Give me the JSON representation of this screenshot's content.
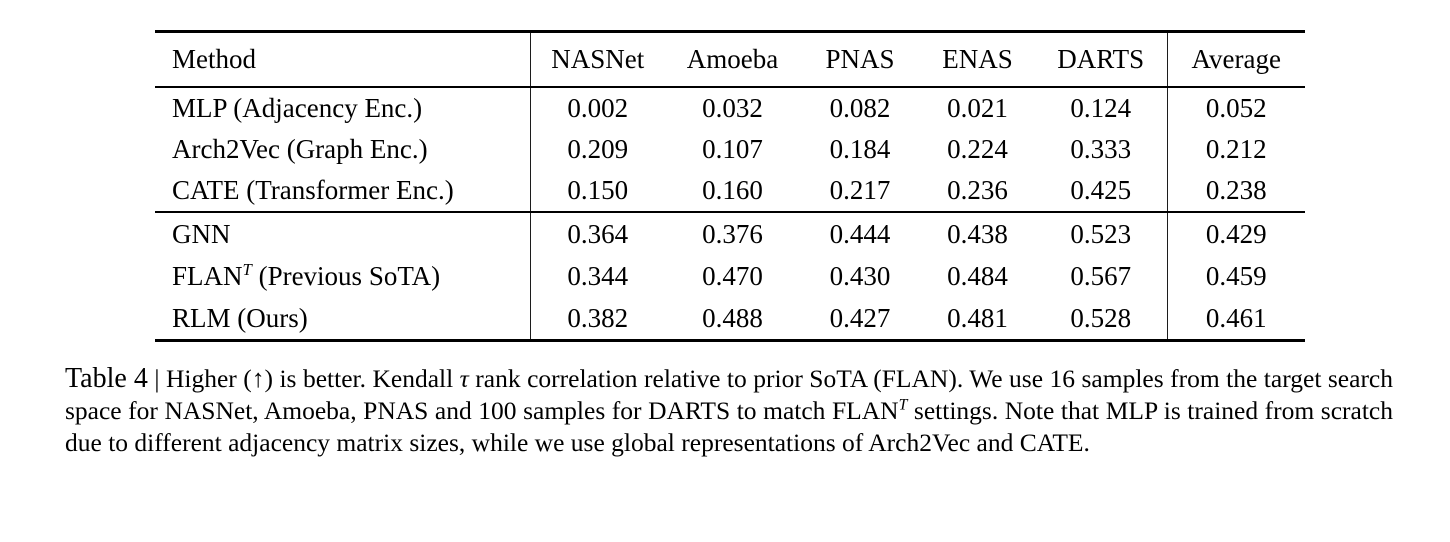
{
  "table": {
    "columns": [
      "Method",
      "NASNet",
      "Amoeba",
      "PNAS",
      "ENAS",
      "DARTS",
      "Average"
    ],
    "groups": [
      {
        "rows": [
          {
            "method": "MLP (Adjacency Enc.)",
            "values": [
              "0.002",
              "0.032",
              "0.082",
              "0.021",
              "0.124",
              "0.052"
            ],
            "bold_cols": [],
            "method_bold": false
          },
          {
            "method": "Arch2Vec (Graph Enc.)",
            "values": [
              "0.209",
              "0.107",
              "0.184",
              "0.224",
              "0.333",
              "0.212"
            ],
            "bold_cols": [],
            "method_bold": false
          },
          {
            "method": "CATE (Transformer Enc.)",
            "values": [
              "0.150",
              "0.160",
              "0.217",
              "0.236",
              "0.425",
              "0.238"
            ],
            "bold_cols": [],
            "method_bold": false
          }
        ]
      },
      {
        "rows": [
          {
            "method": "GNN",
            "values": [
              "0.364",
              "0.376",
              "0.444",
              "0.438",
              "0.523",
              "0.429"
            ],
            "bold_cols": [
              2
            ],
            "method_bold": false
          },
          {
            "method": "FLAN (Previous SoTA)",
            "method_segments": [
              {
                "text": "FLAN",
                "style": ""
              },
              {
                "text": "T",
                "style": "sup"
              },
              {
                "text": " (Previous SoTA)",
                "style": ""
              }
            ],
            "values": [
              "0.344",
              "0.470",
              "0.430",
              "0.484",
              "0.567",
              "0.459"
            ],
            "bold_cols": [
              3,
              4
            ],
            "method_bold": false
          },
          {
            "method": "RLM (Ours)",
            "values": [
              "0.382",
              "0.488",
              "0.427",
              "0.481",
              "0.528",
              "0.461"
            ],
            "bold_cols": [
              0,
              1,
              5
            ],
            "method_bold": true
          }
        ]
      }
    ]
  },
  "caption": {
    "segments": [
      {
        "text": "Table 4",
        "style": "label",
        "name": "caption-label"
      },
      {
        "text": " | ",
        "style": "",
        "name": "caption-separator"
      },
      {
        "text": "Higher (↑) is better. Kendall ",
        "style": ""
      },
      {
        "text": "τ",
        "style": "italic"
      },
      {
        "text": " rank correlation relative to prior SoTA (FLAN). We use 16 samples from the target search space for NASNet, Amoeba, PNAS and 100 samples for DARTS to match FLAN",
        "style": ""
      },
      {
        "text": "T",
        "style": "sup"
      },
      {
        "text": " settings. Note that MLP is trained from scratch due to different adjacency matrix sizes, while we use global representations of Arch2Vec and CATE.",
        "style": ""
      }
    ]
  }
}
